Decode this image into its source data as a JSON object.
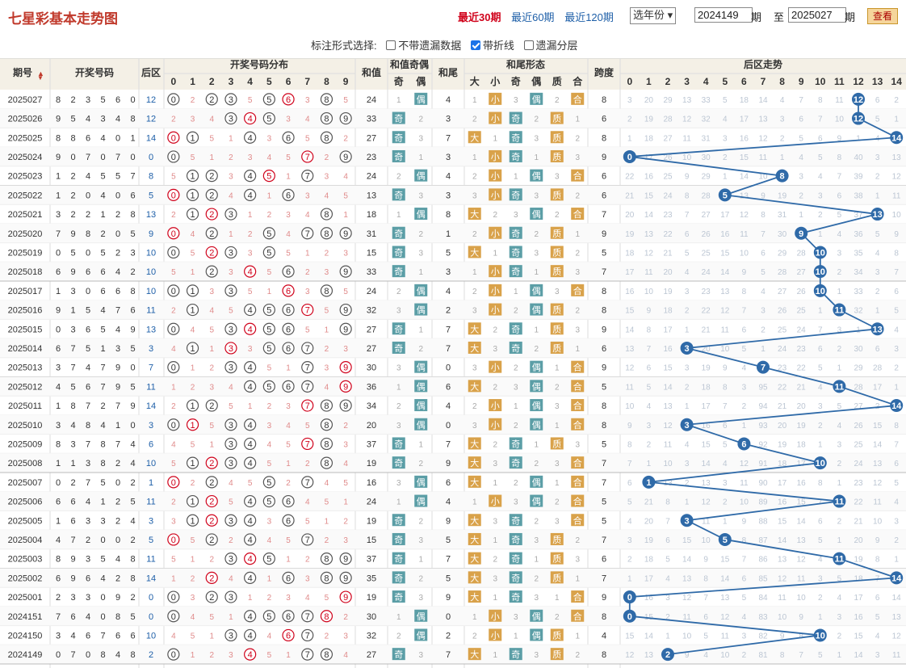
{
  "header": {
    "title": "七星彩基本走势图",
    "ranges": [
      {
        "label": "最近30期",
        "active": true
      },
      {
        "label": "最近60期",
        "active": false
      },
      {
        "label": "最近120期",
        "active": false
      }
    ],
    "year_select": "选年份",
    "from_value": "2024149",
    "from_unit": "期",
    "to_label": "至",
    "to_value": "2025027",
    "to_unit": "期",
    "query_button": "查看"
  },
  "options": {
    "label": "标注形式选择:",
    "items": [
      {
        "label": "不带遗漏数据",
        "checked": false
      },
      {
        "label": "带折线",
        "checked": true
      },
      {
        "label": "遗漏分层",
        "checked": false
      }
    ]
  },
  "columns": {
    "period": "期号",
    "sort_icon": "sort-icon",
    "draw": "开奖号码",
    "back": "后区",
    "dist": "开奖号码分布",
    "sum": "和值",
    "sum_oe": "和值奇偶",
    "odd": "奇",
    "even": "偶",
    "tail": "和尾",
    "tail_form": "和尾形态",
    "big": "大",
    "small": "小",
    "t_odd": "奇",
    "t_even": "偶",
    "prime": "质",
    "comp": "合",
    "span": "跨度",
    "trend": "后区走势"
  },
  "rows": [
    {
      "p": "2025027",
      "d": "8235 60",
      "draw": [
        8,
        2,
        3,
        5,
        6,
        0
      ],
      "b": 12,
      "dist": [
        1,
        2,
        2,
        1,
        1,
        1,
        1,
        3,
        1,
        1
      ],
      "sum": 24,
      "sumOdd": false,
      "oeMiss": 1,
      "tail": 4,
      "tailBig": false,
      "bsMiss": 2,
      "tailOdd": false,
      "toeMiss": 1,
      "prime": false,
      "pcMiss": 1,
      "span": 8,
      "tr": [
        3,
        20,
        29,
        13,
        33,
        5,
        18,
        14,
        4,
        7,
        8,
        11,
        null,
        6,
        2
      ]
    }
  ]
}
